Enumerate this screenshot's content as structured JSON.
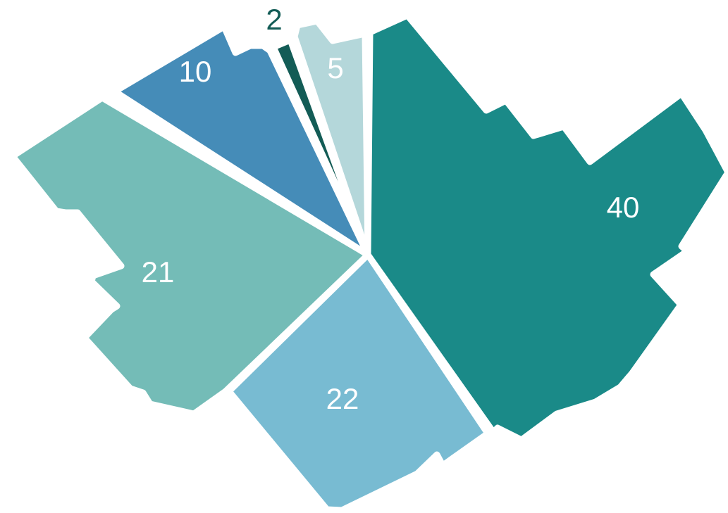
{
  "chart_data": {
    "type": "pie",
    "title": "",
    "series": [
      {
        "label": "40",
        "value": 40,
        "color": "#1a8a88"
      },
      {
        "label": "22",
        "value": 22,
        "color": "#78bbd2"
      },
      {
        "label": "21",
        "value": 21,
        "color": "#74bcb7"
      },
      {
        "label": "10",
        "value": 10,
        "color": "#458cb8"
      },
      {
        "label": "2",
        "value": 2,
        "color": "#135c56"
      },
      {
        "label": "5",
        "value": 5,
        "color": "#b4d7da"
      }
    ],
    "label_colors": {
      "inside": "#ffffff",
      "outside": "#135c56"
    },
    "shape": "map-outline",
    "legend": "none"
  }
}
